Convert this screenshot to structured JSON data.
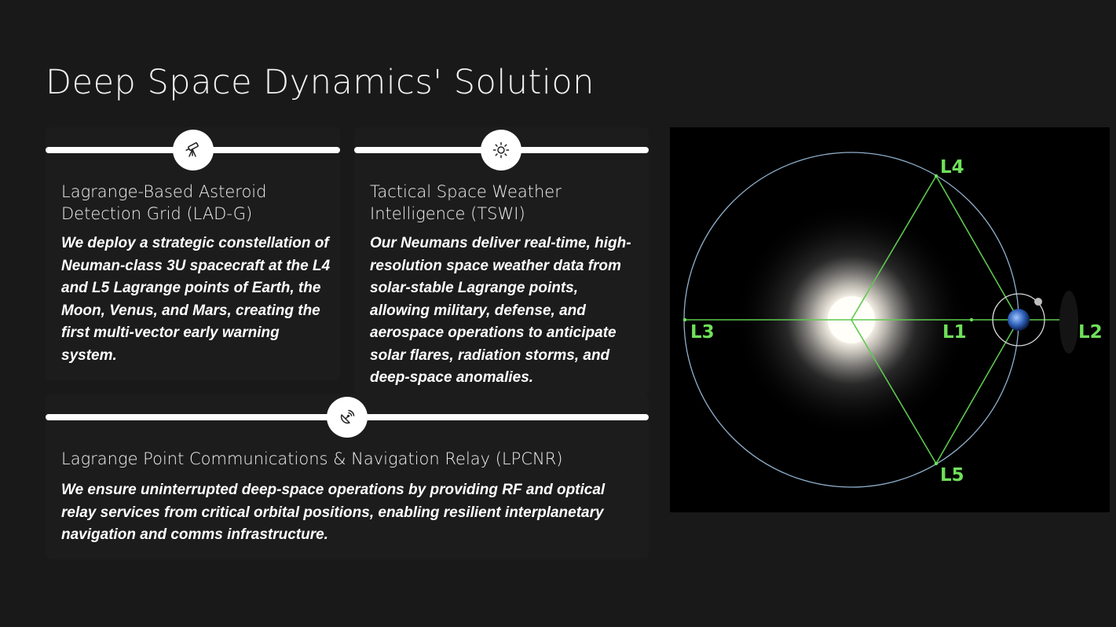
{
  "title": "Deep Space Dynamics' Solution",
  "cards": [
    {
      "icon": "telescope-icon",
      "heading": "Lagrange-Based Asteroid Detection Grid (LAD-G)",
      "body": "We deploy a strategic constellation of Neuman-class 3U spacecraft at the L4 and L5 Lagrange points of Earth, the Moon, Venus, and Mars, creating the first multi-vector early warning system."
    },
    {
      "icon": "sun-icon",
      "heading": "Tactical Space Weather Intelligence (TSWI)",
      "body": "Our Neumans deliver real-time, high-resolution space weather data from solar-stable Lagrange points, allowing military, defense, and aerospace operations to anticipate solar flares, radiation storms, and deep-space anomalies."
    },
    {
      "icon": "satellite-dish-icon",
      "heading": "Lagrange Point Communications & Navigation Relay (LPCNR)",
      "body": "We ensure uninterrupted deep-space operations by providing RF and optical relay services from critical orbital positions, enabling resilient interplanetary navigation and comms infrastructure."
    }
  ],
  "diagram": {
    "labels": {
      "l1": "L1",
      "l2": "L2",
      "l3": "L3",
      "l4": "L4",
      "l5": "L5"
    },
    "colors": {
      "label": "#6fe05a",
      "lines": "#5ec94e",
      "orbit": "#8fb0cc",
      "background": "#000000"
    }
  }
}
